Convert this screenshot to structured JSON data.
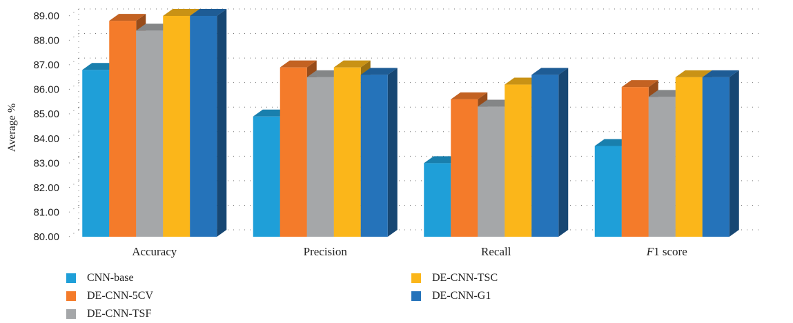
{
  "chart_data": {
    "type": "bar",
    "ylabel": "Average %",
    "xlabel": "",
    "ylim": [
      80,
      89
    ],
    "yticks": [
      "80.00",
      "81.00",
      "82.00",
      "83.00",
      "84.00",
      "85.00",
      "86.00",
      "87.00",
      "88.00",
      "89.00"
    ],
    "categories": [
      "Accuracy",
      "Precision",
      "Recall",
      "F1 score"
    ],
    "grid": true,
    "legend_position": "bottom",
    "series": [
      {
        "name": "CNN-base",
        "color": "#1f9fd8",
        "values": [
          86.8,
          84.9,
          83.0,
          83.7
        ]
      },
      {
        "name": "DE-CNN-5CV",
        "color": "#f47b2a",
        "values": [
          88.8,
          86.9,
          85.6,
          86.1
        ]
      },
      {
        "name": "DE-CNN-TSF",
        "color": "#a5a7a9",
        "values": [
          88.4,
          86.5,
          85.3,
          85.7
        ]
      },
      {
        "name": "DE-CNN-TSC",
        "color": "#fbb61a",
        "values": [
          89.0,
          86.9,
          86.2,
          86.5
        ]
      },
      {
        "name": "DE-CNN-G1",
        "color": "#2573ba",
        "values": [
          89.0,
          86.6,
          86.6,
          86.5
        ]
      }
    ]
  }
}
